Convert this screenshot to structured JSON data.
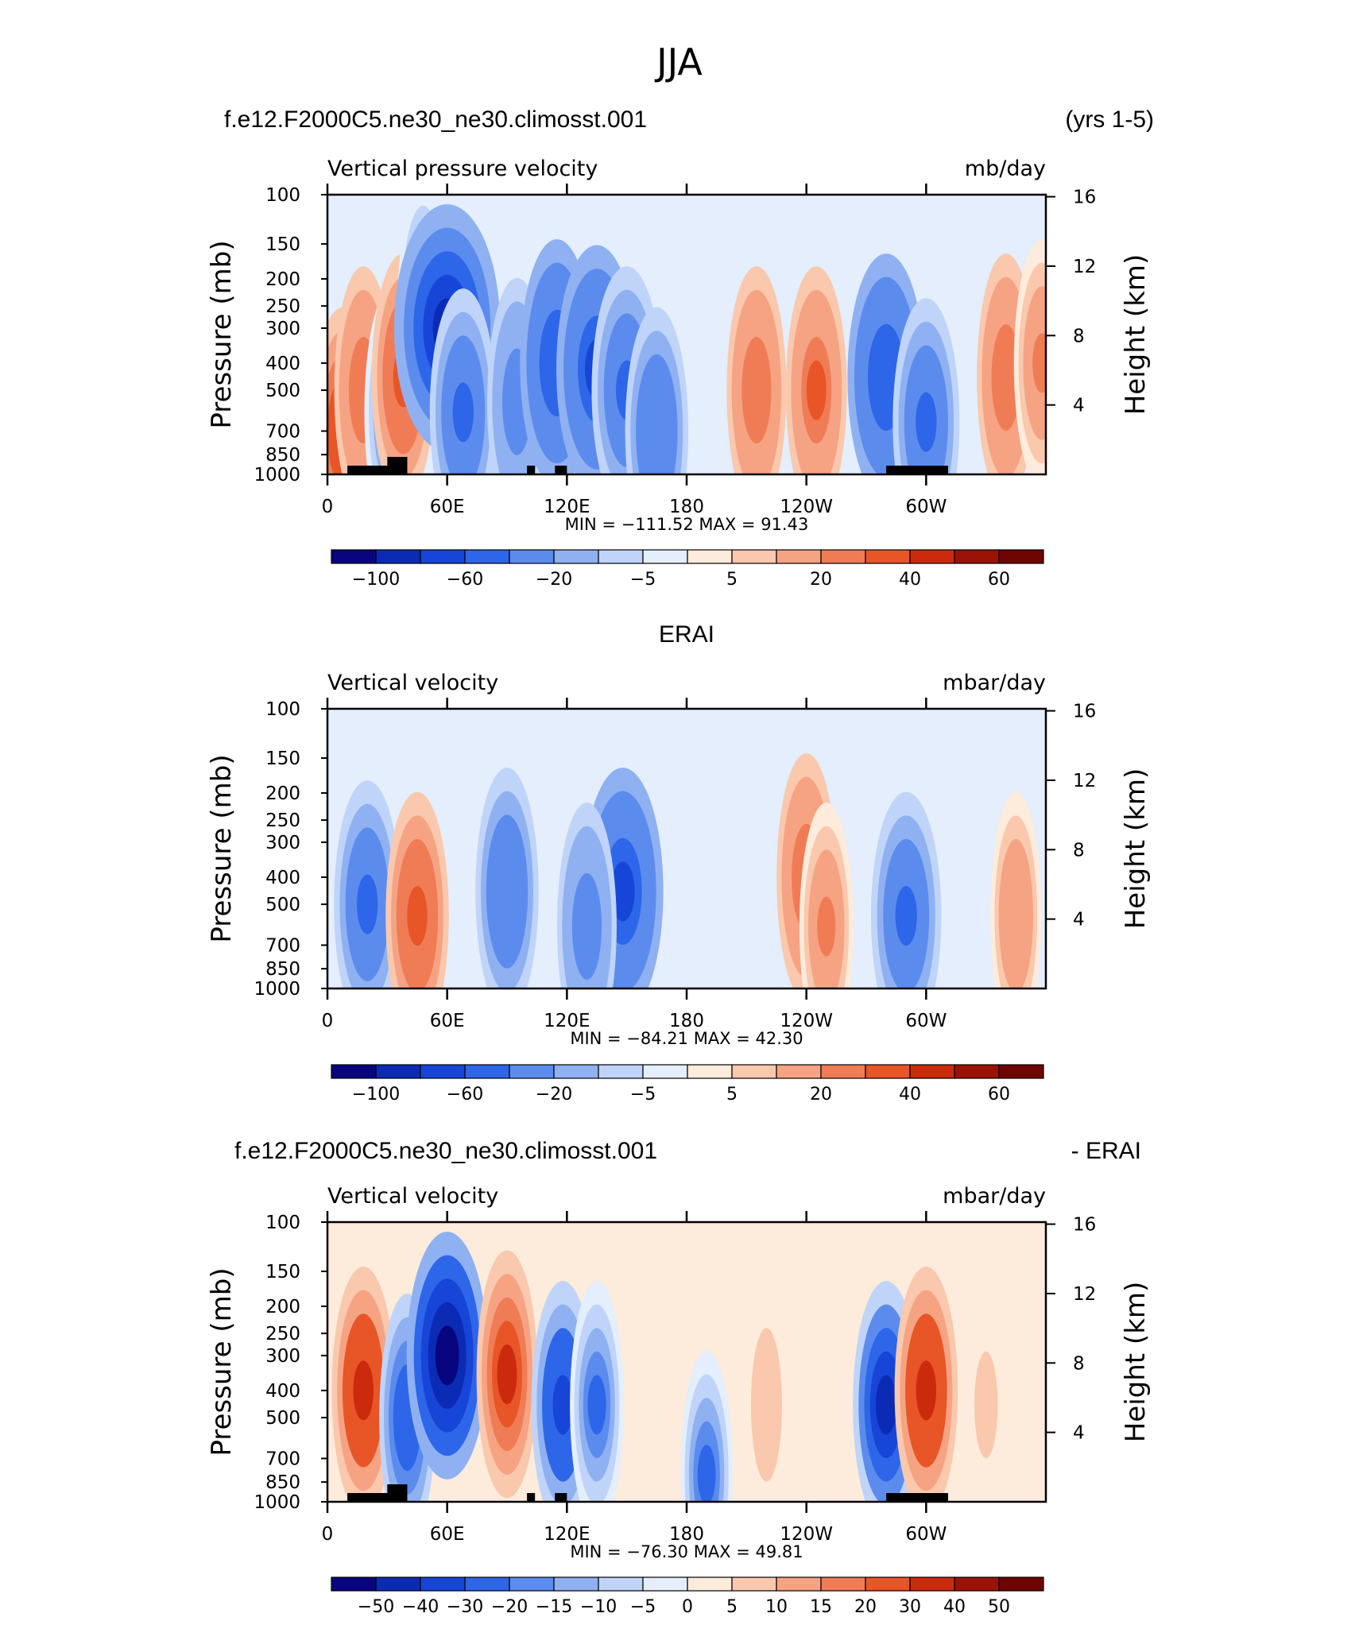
{
  "page_title": "JJA",
  "colors": {
    "blue_to_red": [
      "#08057f",
      "#0c2bb5",
      "#1645d8",
      "#2d66e8",
      "#5b8ced",
      "#8fb1f2",
      "#bfd4f8",
      "#e4eefc",
      "#fdebdc",
      "#f9c8ad",
      "#f6a383",
      "#f07c56",
      "#e85527",
      "#cc2a0d",
      "#9c1207",
      "#6e0503"
    ]
  },
  "chart_data": [
    {
      "type": "heatmap",
      "panel_left_title": "f.e12.F2000C5.ne30_ne30.climosst.001",
      "panel_right_title": "(yrs 1-5)",
      "variable_label": "Vertical pressure velocity",
      "units_label": "mb/day",
      "ylabel": "Pressure (mb)",
      "ylabel_right": "Height (km)",
      "y_ticks": [
        "100",
        "150",
        "200",
        "250",
        "300",
        "400",
        "500",
        "700",
        "850",
        "1000"
      ],
      "y_tick_values": [
        100,
        150,
        200,
        250,
        300,
        400,
        500,
        700,
        850,
        1000
      ],
      "y_right_ticks": [
        "16",
        "12",
        "8",
        "4"
      ],
      "y_right_tick_values": [
        16,
        12,
        8,
        4
      ],
      "x_ticks": [
        "0",
        "60E",
        "120E",
        "180",
        "120W",
        "60W"
      ],
      "x_tick_values": [
        0,
        60,
        120,
        180,
        240,
        300
      ],
      "xlim": [
        0,
        360
      ],
      "ylim": [
        1000,
        100
      ],
      "stats_text": "MIN = −111.52   MAX =   91.43",
      "colorbar_labels": [
        "−100",
        "−60",
        "−20",
        "−5",
        "5",
        "20",
        "40",
        "60"
      ],
      "colorbar_label_positions": [
        1,
        3,
        5,
        7,
        9,
        11,
        13,
        15
      ],
      "features": [
        {
          "lon": 8,
          "p": 700,
          "value": 40
        },
        {
          "lon": 18,
          "p": 500,
          "value": 28
        },
        {
          "lon": 32,
          "p": 600,
          "value": -22
        },
        {
          "lon": 38,
          "p": 450,
          "value": 35
        },
        {
          "lon": 48,
          "p": 250,
          "value": -18
        },
        {
          "lon": 60,
          "p": 300,
          "value": -95
        },
        {
          "lon": 68,
          "p": 600,
          "value": -40
        },
        {
          "lon": 95,
          "p": 550,
          "value": -30
        },
        {
          "lon": 115,
          "p": 400,
          "value": -50
        },
        {
          "lon": 135,
          "p": 420,
          "value": -60
        },
        {
          "lon": 150,
          "p": 500,
          "value": -45
        },
        {
          "lon": 165,
          "p": 700,
          "value": -35
        },
        {
          "lon": 215,
          "p": 500,
          "value": 30
        },
        {
          "lon": 245,
          "p": 500,
          "value": 32
        },
        {
          "lon": 280,
          "p": 450,
          "value": -55
        },
        {
          "lon": 300,
          "p": 650,
          "value": -40
        },
        {
          "lon": 340,
          "p": 450,
          "value": 28
        },
        {
          "lon": 358,
          "p": 400,
          "value": 25
        }
      ],
      "value_range": [
        -111.52,
        91.43
      ]
    },
    {
      "type": "heatmap",
      "panel_center_title": "ERAI",
      "variable_label": "Vertical velocity",
      "units_label": "mbar/day",
      "ylabel": "Pressure (mb)",
      "ylabel_right": "Height (km)",
      "y_ticks": [
        "100",
        "150",
        "200",
        "250",
        "300",
        "400",
        "500",
        "700",
        "850",
        "1000"
      ],
      "y_tick_values": [
        100,
        150,
        200,
        250,
        300,
        400,
        500,
        700,
        850,
        1000
      ],
      "y_right_ticks": [
        "16",
        "12",
        "8",
        "4"
      ],
      "y_right_tick_values": [
        16,
        12,
        8,
        4
      ],
      "x_ticks": [
        "0",
        "60E",
        "120E",
        "180",
        "120W",
        "60W"
      ],
      "x_tick_values": [
        0,
        60,
        120,
        180,
        240,
        300
      ],
      "xlim": [
        0,
        360
      ],
      "ylim": [
        1000,
        100
      ],
      "stats_text": "MIN = −84.21   MAX =   42.30",
      "colorbar_labels": [
        "−100",
        "−60",
        "−20",
        "−5",
        "5",
        "20",
        "40",
        "60"
      ],
      "colorbar_label_positions": [
        1,
        3,
        5,
        7,
        9,
        11,
        13,
        15
      ],
      "features": [
        {
          "lon": 20,
          "p": 500,
          "value": -40
        },
        {
          "lon": 45,
          "p": 550,
          "value": 35
        },
        {
          "lon": 90,
          "p": 450,
          "value": -35
        },
        {
          "lon": 148,
          "p": 450,
          "value": -60
        },
        {
          "lon": 130,
          "p": 600,
          "value": -30
        },
        {
          "lon": 240,
          "p": 400,
          "value": 30
        },
        {
          "lon": 250,
          "p": 600,
          "value": 22
        },
        {
          "lon": 290,
          "p": 550,
          "value": -45
        },
        {
          "lon": 345,
          "p": 550,
          "value": 18
        }
      ],
      "value_range": [
        -84.21,
        42.3
      ]
    },
    {
      "type": "heatmap",
      "panel_left_title": "f.e12.F2000C5.ne30_ne30.climosst.001",
      "panel_right_title": "- ERAI",
      "variable_label": "Vertical velocity",
      "units_label": "mbar/day",
      "ylabel": "Pressure (mb)",
      "ylabel_right": "Height (km)",
      "y_ticks": [
        "100",
        "150",
        "200",
        "250",
        "300",
        "400",
        "500",
        "700",
        "850",
        "1000"
      ],
      "y_tick_values": [
        100,
        150,
        200,
        250,
        300,
        400,
        500,
        700,
        850,
        1000
      ],
      "y_right_ticks": [
        "16",
        "12",
        "8",
        "4"
      ],
      "y_right_tick_values": [
        16,
        12,
        8,
        4
      ],
      "x_ticks": [
        "0",
        "60E",
        "120E",
        "180",
        "120W",
        "60W"
      ],
      "x_tick_values": [
        0,
        60,
        120,
        180,
        240,
        300
      ],
      "xlim": [
        0,
        360
      ],
      "ylim": [
        1000,
        100
      ],
      "stats_text": "MIN = −76.30   MAX =   49.81",
      "colorbar_labels": [
        "−50",
        "−40",
        "−30",
        "−20",
        "−15",
        "−10",
        "−5",
        "0",
        "5",
        "10",
        "15",
        "20",
        "30",
        "40",
        "50"
      ],
      "colorbar_label_positions": [
        1,
        2,
        3,
        4,
        5,
        6,
        7,
        8,
        9,
        10,
        11,
        12,
        13,
        14,
        15
      ],
      "features": [
        {
          "lon": 18,
          "p": 400,
          "value": 35
        },
        {
          "lon": 40,
          "p": 500,
          "value": -25
        },
        {
          "lon": 60,
          "p": 300,
          "value": -60
        },
        {
          "lon": 90,
          "p": 350,
          "value": 32
        },
        {
          "lon": 118,
          "p": 450,
          "value": -35
        },
        {
          "lon": 135,
          "p": 450,
          "value": -22
        },
        {
          "lon": 190,
          "p": 800,
          "value": -20
        },
        {
          "lon": 220,
          "p": 450,
          "value": 10
        },
        {
          "lon": 280,
          "p": 450,
          "value": -40
        },
        {
          "lon": 300,
          "p": 400,
          "value": 35
        },
        {
          "lon": 330,
          "p": 450,
          "value": 8
        }
      ],
      "value_range": [
        -76.3,
        49.81
      ]
    }
  ]
}
